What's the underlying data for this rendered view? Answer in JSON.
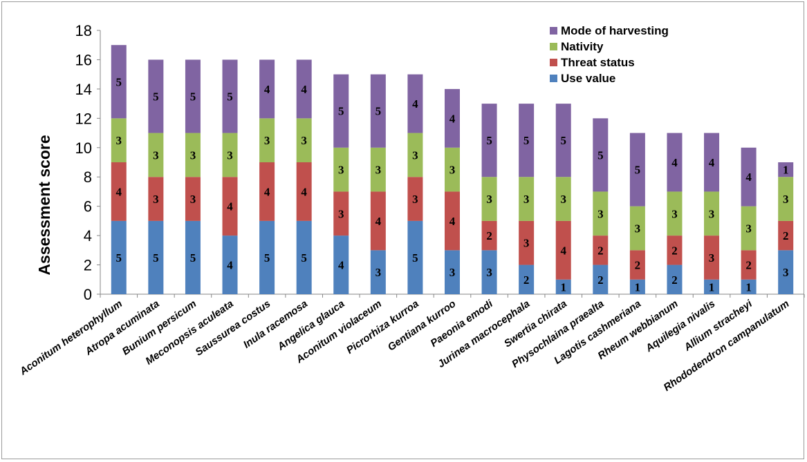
{
  "chart_data": {
    "type": "bar",
    "stacked": true,
    "title": "",
    "xlabel": "",
    "ylabel": "Assessment score",
    "ylim": [
      0,
      18
    ],
    "yticks": [
      "0",
      "2",
      "4",
      "6",
      "8",
      "10",
      "12",
      "14",
      "16",
      "18"
    ],
    "legend_position": "top-right",
    "categories": [
      "Aconitum heterophyllum",
      "Atropa acuminata",
      "Bunium persicum",
      "Meconopsis aculeata",
      "Saussurea costus",
      "Inula racemosa",
      "Angelica glauca",
      "Aconitum violaceum",
      "Picrorhiza kurroa",
      "Gentiana kurroo",
      "Paeonia emodi",
      "Jurinea macrocephala",
      "Swertia chirata",
      "Physochlaina praealta",
      "Lagotis cashmeriana",
      "Rheum webbianum",
      "Aquilegia nivalis",
      "Allium stracheyi",
      "Rhododendron campanulatum"
    ],
    "series": [
      {
        "name": "Use value",
        "color": "#4f81bd",
        "values": [
          5,
          5,
          5,
          4,
          5,
          5,
          4,
          3,
          5,
          3,
          3,
          2,
          1,
          2,
          1,
          2,
          1,
          1,
          3
        ]
      },
      {
        "name": "Threat status",
        "color": "#c0504d",
        "values": [
          4,
          3,
          3,
          4,
          4,
          4,
          3,
          4,
          3,
          4,
          2,
          3,
          4,
          2,
          2,
          2,
          3,
          2,
          2
        ]
      },
      {
        "name": "Nativity",
        "color": "#9bbb59",
        "values": [
          3,
          3,
          3,
          3,
          3,
          3,
          3,
          3,
          3,
          3,
          3,
          3,
          3,
          3,
          3,
          3,
          3,
          3,
          3
        ]
      },
      {
        "name": "Mode of harvesting",
        "color": "#8064a2",
        "values": [
          5,
          5,
          5,
          5,
          4,
          4,
          5,
          5,
          4,
          4,
          5,
          5,
          5,
          5,
          5,
          4,
          4,
          4,
          1
        ]
      }
    ]
  }
}
